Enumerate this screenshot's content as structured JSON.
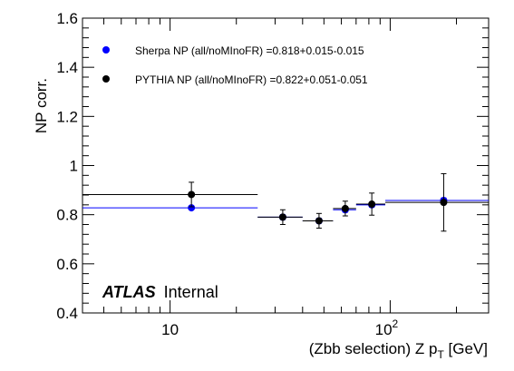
{
  "chart_data": {
    "type": "scatter",
    "xlabel_main": "(Zbb selection) Z p",
    "xlabel_sub": "T",
    "xlabel_unit": " [GeV]",
    "ylabel": "NP corr.",
    "xscale": "log",
    "xlim": [
      4,
      280
    ],
    "ylim": [
      0.4,
      1.6
    ],
    "x_ticks": [
      {
        "value": 10,
        "label": "10"
      },
      {
        "value": 100,
        "label": "10",
        "sup": "2"
      }
    ],
    "y_ticks": [
      {
        "value": 0.4,
        "label": "0.4"
      },
      {
        "value": 0.6,
        "label": "0.6"
      },
      {
        "value": 0.8,
        "label": "0.8"
      },
      {
        "value": 1.0,
        "label": "1"
      },
      {
        "value": 1.2,
        "label": "1.2"
      },
      {
        "value": 1.4,
        "label": "1.4"
      },
      {
        "value": 1.6,
        "label": "1.6"
      }
    ],
    "legend_position": "top-left",
    "series": [
      {
        "name": "Sherpa NP (all/noMInoFR) =0.818+0.015-0.015",
        "color": "#0000ff",
        "points": [
          {
            "x": 12.5,
            "xlo": 4,
            "xhi": 25,
            "y": 0.828,
            "err": 0.005
          },
          {
            "x": 32.5,
            "xlo": 25,
            "xhi": 40,
            "y": 0.79,
            "err": 0.01
          },
          {
            "x": 47.5,
            "xlo": 40,
            "xhi": 55,
            "y": 0.775,
            "err": 0.01
          },
          {
            "x": 62.5,
            "xlo": 55,
            "xhi": 70,
            "y": 0.82,
            "err": 0.01
          },
          {
            "x": 82.5,
            "xlo": 70,
            "xhi": 95,
            "y": 0.84,
            "err": 0.01
          },
          {
            "x": 175,
            "xlo": 95,
            "xhi": 280,
            "y": 0.858,
            "err": 0.01
          }
        ]
      },
      {
        "name": "PYTHIA NP (all/noMInoFR) =0.822+0.051-0.051",
        "color": "#000000",
        "points": [
          {
            "x": 12.5,
            "xlo": 4,
            "xhi": 25,
            "y": 0.882,
            "err": 0.05
          },
          {
            "x": 32.5,
            "xlo": 25,
            "xhi": 40,
            "y": 0.79,
            "err": 0.03
          },
          {
            "x": 47.5,
            "xlo": 40,
            "xhi": 55,
            "y": 0.775,
            "err": 0.03
          },
          {
            "x": 62.5,
            "xlo": 55,
            "xhi": 70,
            "y": 0.825,
            "err": 0.03
          },
          {
            "x": 82.5,
            "xlo": 70,
            "xhi": 95,
            "y": 0.843,
            "err": 0.045
          },
          {
            "x": 175,
            "xlo": 95,
            "xhi": 280,
            "y": 0.85,
            "err": 0.117
          }
        ]
      }
    ],
    "annotation": {
      "bold": "ATLAS",
      "normal": "Internal"
    }
  }
}
